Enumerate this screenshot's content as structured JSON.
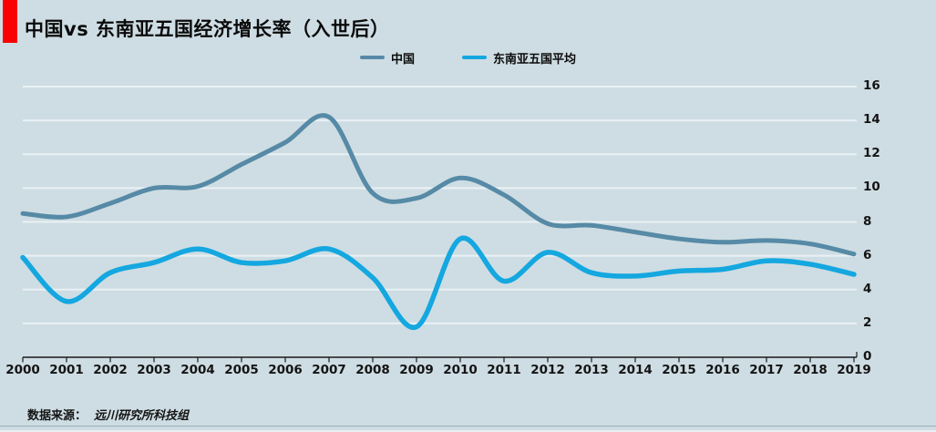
{
  "page": {
    "background_color": "#cedde3",
    "gridline_color": "#e9f1f4",
    "axis_color": "#1a1a1a"
  },
  "header": {
    "title": "中国vs 东南亚五国经济增长率（入世后）",
    "accent_color": "#fa0000"
  },
  "legend": [
    {
      "label": "中国",
      "color": "#568aa6"
    },
    {
      "label": "东南亚五国平均",
      "color": "#14a7e0"
    }
  ],
  "source": {
    "prefix": "数据来源：",
    "name": "远川研究所科技组"
  },
  "chart_data": {
    "type": "line",
    "title": "中国vs 东南亚五国经济增长率（入世后）",
    "categories": [
      "2000",
      "2001",
      "2002",
      "2003",
      "2004",
      "2005",
      "2006",
      "2007",
      "2008",
      "2009",
      "2010",
      "2011",
      "2012",
      "2013",
      "2014",
      "2015",
      "2016",
      "2017",
      "2018",
      "2019"
    ],
    "series": [
      {
        "name": "中国",
        "color": "#568aa6",
        "line_width": 5,
        "values": [
          8.5,
          8.3,
          9.1,
          10.0,
          10.1,
          11.4,
          12.7,
          14.2,
          9.7,
          9.4,
          10.6,
          9.6,
          7.9,
          7.8,
          7.4,
          7.0,
          6.8,
          6.9,
          6.7,
          6.1
        ]
      },
      {
        "name": "东南亚五国平均",
        "color": "#14a7e0",
        "line_width": 5.5,
        "values": [
          5.9,
          3.3,
          5.0,
          5.6,
          6.4,
          5.6,
          5.7,
          6.4,
          4.7,
          1.8,
          7.0,
          4.5,
          6.2,
          5.0,
          4.8,
          5.1,
          5.2,
          5.7,
          5.5,
          4.9
        ]
      }
    ],
    "xlabel": "",
    "ylabel": "",
    "ylim": [
      0,
      16
    ],
    "yticks": [
      0,
      2,
      4,
      6,
      8,
      10,
      12,
      14,
      16
    ],
    "grid": true,
    "smooth_lines": true,
    "legend_position": "top",
    "y_axis_side": "right"
  }
}
